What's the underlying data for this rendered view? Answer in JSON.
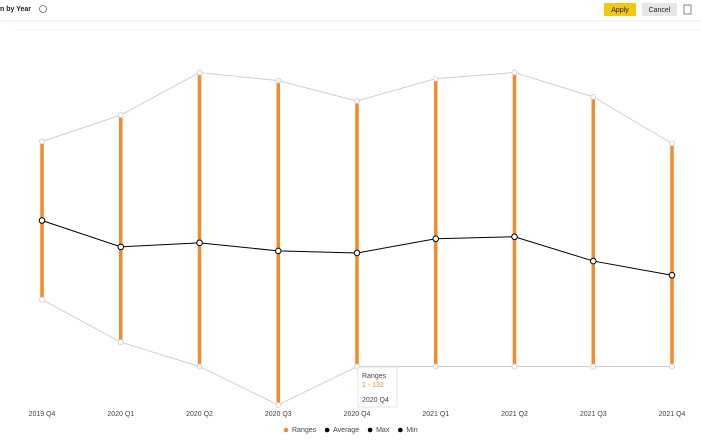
{
  "header": {
    "title": "n by Year",
    "apply": "Apply",
    "cancel": "Cancel"
  },
  "chart_data": {
    "type": "rangebar",
    "categories": [
      "2019 Q4",
      "2020 Q1",
      "2020 Q2",
      "2020 Q3",
      "2020 Q4",
      "2021 Q1",
      "2021 Q2",
      "2021 Q3",
      "2021 Q4"
    ],
    "series": [
      {
        "name": "Ranges",
        "color": "#f28c28"
      },
      {
        "name": "Average",
        "color": "#000000",
        "values": [
          73,
          60,
          62,
          58,
          57,
          64,
          65,
          53,
          46
        ]
      },
      {
        "name": "Max",
        "color": "#000000",
        "values": [
          112,
          125,
          146,
          142,
          132,
          143,
          146,
          134,
          111
        ]
      },
      {
        "name": "Min",
        "color": "#000000",
        "values": [
          34,
          13,
          1,
          -18,
          1,
          1,
          1,
          1,
          1
        ]
      }
    ],
    "ylim": [
      -18,
      166
    ],
    "tooltip": {
      "series": "Ranges",
      "label": "1 - 132",
      "category": "2020 Q4"
    }
  }
}
